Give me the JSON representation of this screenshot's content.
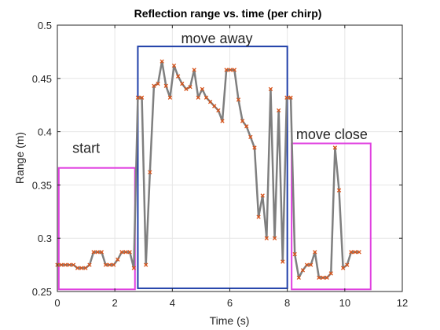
{
  "chart_data": {
    "type": "line",
    "title": "Reflection range vs. time (per chirp)",
    "xlabel": "Time (s)",
    "ylabel": "Range (m)",
    "xlim": [
      0,
      12
    ],
    "ylim": [
      0.25,
      0.5
    ],
    "xticks": [
      "0",
      "2",
      "4",
      "6",
      "8",
      "10",
      "12"
    ],
    "yticks": [
      "0.25",
      "0.3",
      "0.35",
      "0.4",
      "0.45",
      "0.5"
    ],
    "grid": true,
    "series": [
      {
        "color": "#7f7f7f",
        "marker": "x",
        "marker_color": "#d95319",
        "x": [
          0.0,
          0.14,
          0.28,
          0.42,
          0.56,
          0.7,
          0.84,
          0.98,
          1.12,
          1.26,
          1.4,
          1.54,
          1.68,
          1.82,
          1.96,
          2.1,
          2.24,
          2.38,
          2.52,
          2.66,
          2.8,
          2.94,
          3.08,
          3.22,
          3.36,
          3.5,
          3.64,
          3.78,
          3.92,
          4.06,
          4.2,
          4.34,
          4.48,
          4.62,
          4.76,
          4.9,
          5.04,
          5.18,
          5.32,
          5.46,
          5.6,
          5.74,
          5.88,
          6.02,
          6.16,
          6.3,
          6.44,
          6.58,
          6.72,
          6.86,
          7.0,
          7.14,
          7.28,
          7.42,
          7.56,
          7.7,
          7.84,
          7.98,
          8.12,
          8.26,
          8.4,
          8.54,
          8.68,
          8.82,
          8.96,
          9.1,
          9.24,
          9.38,
          9.52,
          9.66,
          9.8,
          9.94,
          10.08,
          10.22,
          10.36,
          10.5
        ],
        "y": [
          0.275,
          0.275,
          0.275,
          0.275,
          0.275,
          0.272,
          0.272,
          0.272,
          0.275,
          0.287,
          0.287,
          0.287,
          0.275,
          0.275,
          0.275,
          0.28,
          0.287,
          0.287,
          0.287,
          0.272,
          0.432,
          0.432,
          0.275,
          0.362,
          0.443,
          0.445,
          0.466,
          0.443,
          0.432,
          0.462,
          0.452,
          0.445,
          0.44,
          0.442,
          0.458,
          0.432,
          0.44,
          0.432,
          0.428,
          0.424,
          0.42,
          0.41,
          0.458,
          0.458,
          0.458,
          0.43,
          0.41,
          0.405,
          0.395,
          0.385,
          0.32,
          0.34,
          0.3,
          0.44,
          0.3,
          0.42,
          0.278,
          0.432,
          0.432,
          0.285,
          0.263,
          0.27,
          0.275,
          0.275,
          0.287,
          0.263,
          0.263,
          0.263,
          0.267,
          0.385,
          0.345,
          0.272,
          0.275,
          0.287,
          0.287,
          0.287
        ]
      }
    ],
    "annotations": [
      {
        "text": "start",
        "x0": 0.05,
        "x1": 2.7,
        "y0": 0.252,
        "y1": 0.366,
        "color": "#e040e0",
        "label_x": 1.0,
        "label_y": 0.38
      },
      {
        "text": "move away",
        "x0": 2.8,
        "x1": 8.0,
        "y0": 0.253,
        "y1": 0.48,
        "color": "#1f3fa8",
        "label_x": 5.55,
        "label_y": 0.483
      },
      {
        "text": "move close",
        "x0": 8.15,
        "x1": 10.9,
        "y0": 0.252,
        "y1": 0.389,
        "color": "#e040e0",
        "label_x": 9.55,
        "label_y": 0.393
      }
    ]
  }
}
